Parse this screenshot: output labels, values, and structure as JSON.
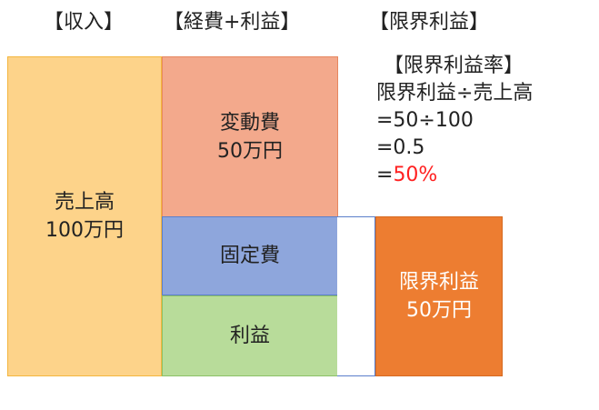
{
  "headers": {
    "revenue": "【収入】",
    "cost_profit": "【経費+利益】",
    "marginal_profit": "【限界利益】"
  },
  "blocks": {
    "sales": {
      "title": "売上高",
      "amount": "100万円"
    },
    "variable_cost": {
      "title": "変動費",
      "amount": "50万円"
    },
    "fixed_cost": {
      "title": "固定費"
    },
    "profit": {
      "title": "利益"
    },
    "marginal_profit": {
      "title": "限界利益",
      "amount": "50万円"
    }
  },
  "formula": {
    "title": "【限界利益率】",
    "expression": "限界利益÷売上高",
    "step1": "=50÷100",
    "step2": "=0.5",
    "result_prefix": "=",
    "result": "50%"
  },
  "colors": {
    "sales_fill": "#fdd38a",
    "sales_border": "#f4b63e",
    "variable_fill": "#f3a98c",
    "variable_border": "#e7875f",
    "fixed_fill": "#8ea6dc",
    "fixed_border": "#5b7fcb",
    "profit_fill": "#b8dc9a",
    "profit_border": "#8cc167",
    "marginal_fill": "#ed7d31",
    "result_red": "#ff2020"
  }
}
